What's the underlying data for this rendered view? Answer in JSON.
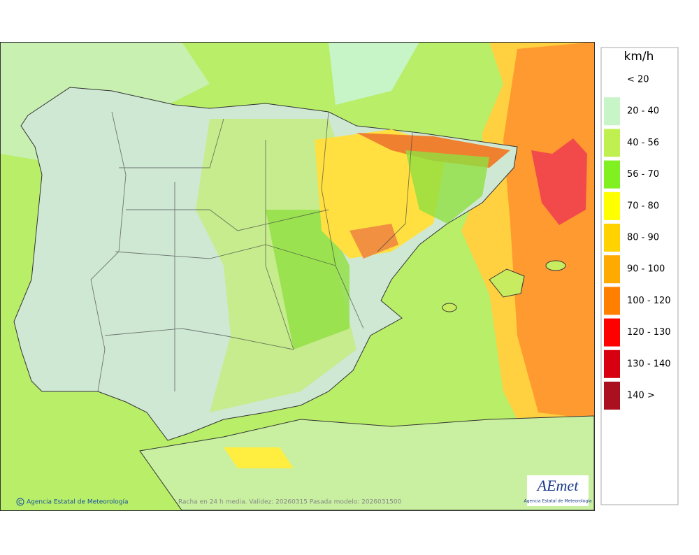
{
  "legend": {
    "title": "km/h",
    "items": [
      {
        "label": "< 20",
        "color": "#ffffff"
      },
      {
        "label": "20 - 40",
        "color": "#c8f5c8"
      },
      {
        "label": "40 - 56",
        "color": "#c0f050"
      },
      {
        "label": "56 - 70",
        "color": "#80f020"
      },
      {
        "label": "70 - 80",
        "color": "#ffff00"
      },
      {
        "label": "80 - 90",
        "color": "#ffd200"
      },
      {
        "label": "90 - 100",
        "color": "#ffaa00"
      },
      {
        "label": "100 - 120",
        "color": "#ff8000"
      },
      {
        "label": "120 - 130",
        "color": "#ff0000"
      },
      {
        "label": "130 - 140",
        "color": "#d80010"
      },
      {
        "label": "140 >",
        "color": "#aa1020"
      }
    ]
  },
  "footer": {
    "credit": "Agencia Estatal de Meteorología",
    "caption": "Racha en 24 h media. Validez: 20260315 Pasada modelo: 2026031500"
  },
  "logo": {
    "name": "AEmet",
    "subtitle": "Agencia Estatal de Meteorología"
  }
}
